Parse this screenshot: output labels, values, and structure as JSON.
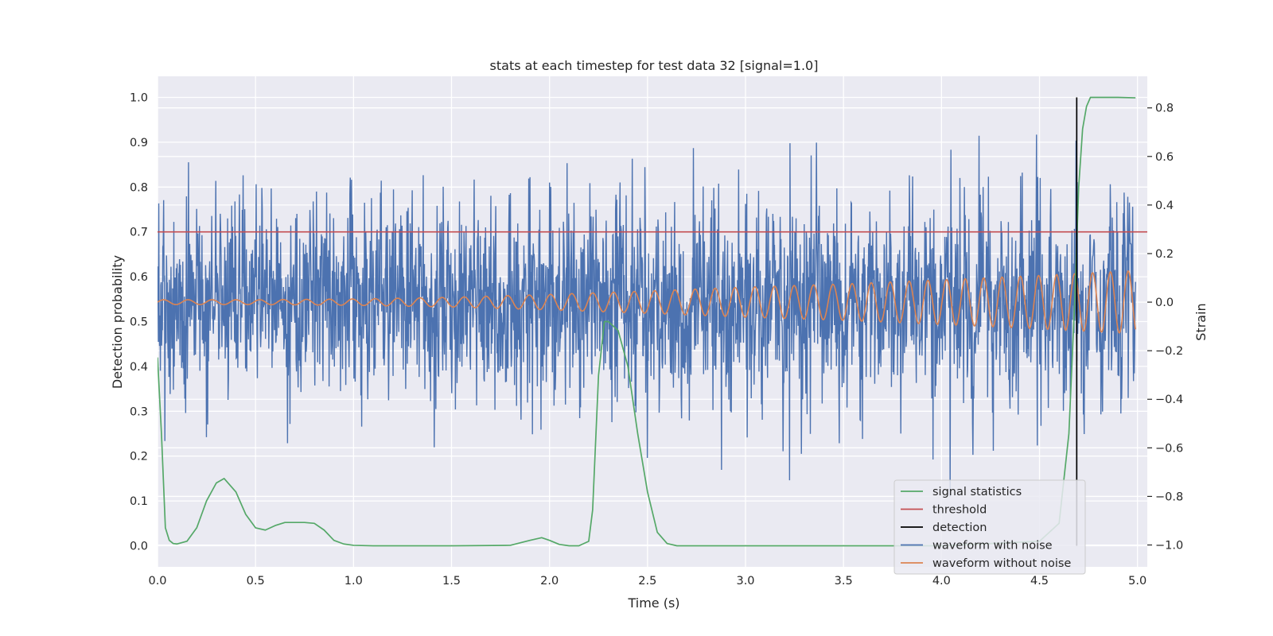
{
  "chart_data": {
    "type": "line",
    "title": "stats at each timestep for test data 32 [signal=1.0]",
    "xlabel": "Time (s)",
    "ylabel": "Detection probability",
    "y2label": "Strain",
    "xlim": [
      0.0,
      5.05
    ],
    "ylim": [
      -0.047,
      1.047
    ],
    "y2lim": [
      -1.09,
      0.93
    ],
    "x_ticks": [
      "0.0",
      "0.5",
      "1.0",
      "1.5",
      "2.0",
      "2.5",
      "3.0",
      "3.5",
      "4.0",
      "4.5",
      "5.0"
    ],
    "y_ticks": [
      "0.0",
      "0.1",
      "0.2",
      "0.3",
      "0.4",
      "0.5",
      "0.6",
      "0.7",
      "0.8",
      "0.9",
      "1.0"
    ],
    "y2_ticks": [
      "−1.0",
      "−0.8",
      "−0.6",
      "−0.4",
      "−0.2",
      "0.0",
      "0.2",
      "0.4",
      "0.6",
      "0.8"
    ],
    "grid": true,
    "legend_position": "lower right",
    "threshold": 0.7,
    "detection_time": 4.69,
    "noise_std_strain": 0.21,
    "series": [
      {
        "name": "signal statistics",
        "axis": "left",
        "color": "#55a868",
        "x": [
          0.0,
          0.02,
          0.04,
          0.06,
          0.08,
          0.1,
          0.15,
          0.2,
          0.25,
          0.3,
          0.34,
          0.4,
          0.45,
          0.5,
          0.55,
          0.6,
          0.65,
          0.7,
          0.75,
          0.8,
          0.85,
          0.9,
          0.95,
          1.0,
          1.1,
          1.5,
          1.8,
          1.9,
          1.96,
          2.0,
          2.05,
          2.1,
          2.15,
          2.2,
          2.22,
          2.25,
          2.28,
          2.3,
          2.35,
          2.4,
          2.45,
          2.5,
          2.55,
          2.6,
          2.65,
          3.0,
          4.0,
          4.5,
          4.6,
          4.65,
          4.68,
          4.7,
          4.72,
          4.74,
          4.76,
          4.8,
          4.9,
          4.99
        ],
        "y": [
          0.42,
          0.25,
          0.04,
          0.012,
          0.005,
          0.004,
          0.01,
          0.04,
          0.1,
          0.14,
          0.15,
          0.12,
          0.07,
          0.04,
          0.035,
          0.045,
          0.052,
          0.052,
          0.052,
          0.05,
          0.035,
          0.012,
          0.004,
          0.001,
          0.0,
          0.0,
          0.001,
          0.012,
          0.018,
          0.012,
          0.003,
          0.0,
          0.0,
          0.01,
          0.08,
          0.38,
          0.5,
          0.5,
          0.48,
          0.4,
          0.25,
          0.12,
          0.03,
          0.005,
          0.0,
          0.0,
          0.0,
          0.01,
          0.05,
          0.25,
          0.55,
          0.8,
          0.93,
          0.98,
          1.0,
          1.0,
          1.0,
          0.999
        ]
      },
      {
        "name": "threshold",
        "axis": "left",
        "color": "#c44e52",
        "x": [
          0.0,
          5.05
        ],
        "y": [
          0.7,
          0.7
        ]
      },
      {
        "name": "detection",
        "axis": "left",
        "color": "#000000",
        "x": [
          4.69,
          4.69
        ],
        "y": [
          0.0,
          1.0
        ]
      },
      {
        "name": "waveform with noise",
        "axis": "right",
        "color": "#4c72b0",
        "x": [
          0.0,
          4.99
        ],
        "y_range": [
          -0.95,
          0.85
        ]
      },
      {
        "name": "waveform without noise",
        "axis": "right",
        "color": "#dd8452",
        "x": [
          0.0,
          0.5,
          1.0,
          1.5,
          2.0,
          2.5,
          3.0,
          3.5,
          4.0,
          4.5,
          4.99
        ],
        "amplitude": [
          0.01,
          0.01,
          0.013,
          0.02,
          0.032,
          0.046,
          0.062,
          0.075,
          0.092,
          0.11,
          0.13
        ],
        "cycles_per_second": [
          8.0,
          8.3,
          8.6,
          8.9,
          9.2,
          9.6,
          9.9,
          10.2,
          10.5,
          10.8,
          11.1
        ]
      }
    ]
  }
}
